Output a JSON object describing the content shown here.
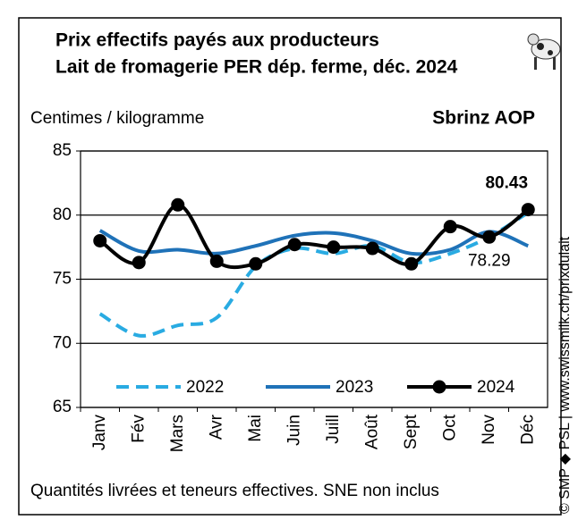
{
  "chart_data": {
    "type": "line",
    "title": [
      "Prix effectifs payés aux producteurs",
      "Lait de fromagerie PER dép. ferme, déc. 2024"
    ],
    "y_label": "Centimes / kilogramme",
    "product": "Sbrinz AOP",
    "footnote": "Quantités livrées et teneurs effectives. SNE non inclus",
    "side_note": "© SMP ◆ PSL | www.swissmilk.ch/prixdulait",
    "categories": [
      "Janv",
      "Fév",
      "Mars",
      "Avr",
      "Mai",
      "Juin",
      "Juill",
      "Août",
      "Sept",
      "Oct",
      "Nov",
      "Déc"
    ],
    "series": [
      {
        "name": "2022",
        "color": "#29abe2",
        "style": "dashed",
        "values": [
          72.3,
          70.6,
          71.4,
          72.0,
          76.0,
          77.4,
          77.0,
          77.6,
          76.3,
          77.0,
          78.3,
          80.2
        ]
      },
      {
        "name": "2023",
        "color": "#1f72b8",
        "style": "solid",
        "values": [
          78.8,
          77.2,
          77.3,
          77.0,
          77.6,
          78.4,
          78.6,
          78.0,
          77.0,
          77.3,
          78.7,
          77.6
        ]
      },
      {
        "name": "2024",
        "color": "#000000",
        "style": "solid",
        "marker": "circle",
        "values": [
          78.0,
          76.3,
          80.8,
          76.4,
          76.2,
          77.7,
          77.5,
          77.4,
          76.2,
          79.1,
          78.29,
          80.43
        ]
      }
    ],
    "ylim": [
      65,
      85
    ],
    "yticks": [
      65,
      70,
      75,
      80,
      85
    ],
    "grid": true
  }
}
